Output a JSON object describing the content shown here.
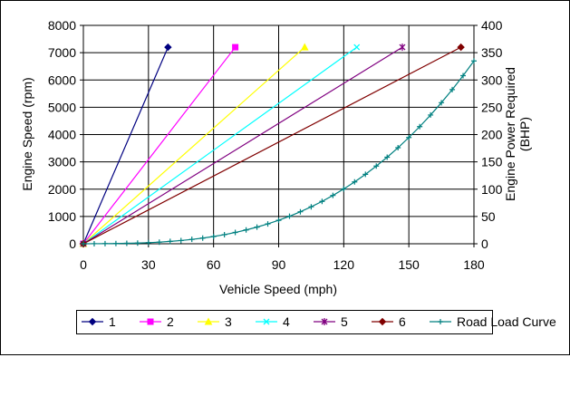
{
  "chart_data": {
    "type": "line",
    "xlabel": "Vehicle Speed (mph)",
    "ylabel": "Engine Speed (rpm)",
    "y2label": "Engine Power Required (BHP)",
    "xlim": [
      0,
      180
    ],
    "xticks": [
      0,
      30,
      60,
      90,
      120,
      150,
      180
    ],
    "ylim": [
      0,
      8000
    ],
    "yticks": [
      0,
      1000,
      2000,
      3000,
      4000,
      5000,
      6000,
      7000,
      8000
    ],
    "y2lim": [
      0,
      400
    ],
    "y2ticks": [
      0,
      50,
      100,
      150,
      200,
      250,
      300,
      350,
      400
    ],
    "grid": true,
    "legend": "bottom",
    "series": [
      {
        "name": "1",
        "color": "#000080",
        "marker": "diamond",
        "x": [
          0,
          39
        ],
        "values": [
          0,
          7200
        ]
      },
      {
        "name": "2",
        "color": "#ff00ff",
        "marker": "square",
        "x": [
          0,
          70
        ],
        "values": [
          0,
          7200
        ]
      },
      {
        "name": "3",
        "color": "#ffff00",
        "marker": "triangle",
        "x": [
          0,
          102
        ],
        "values": [
          0,
          7200
        ]
      },
      {
        "name": "4",
        "color": "#00ffff",
        "marker": "x",
        "x": [
          0,
          126
        ],
        "values": [
          0,
          7200
        ]
      },
      {
        "name": "5",
        "color": "#800080",
        "marker": "star",
        "x": [
          0,
          147
        ],
        "values": [
          0,
          7200
        ]
      },
      {
        "name": "6",
        "color": "#800000",
        "marker": "diamond",
        "x": [
          0,
          174
        ],
        "values": [
          0,
          7200
        ]
      },
      {
        "name": "Road Load Curve",
        "color": "#008080",
        "marker": "plus",
        "axis": "y2",
        "x": [
          0,
          5,
          10,
          15,
          20,
          25,
          30,
          35,
          40,
          45,
          50,
          55,
          60,
          65,
          70,
          75,
          80,
          85,
          90,
          95,
          100,
          105,
          110,
          115,
          120,
          125,
          130,
          135,
          140,
          145,
          150,
          155,
          160,
          165,
          170,
          175,
          180
        ],
        "values": [
          0,
          0.1,
          0.2,
          0.4,
          0.8,
          1.3,
          2.0,
          3.0,
          4.3,
          5.9,
          8.0,
          10.4,
          13.3,
          16.7,
          20.7,
          25.3,
          30.5,
          36.4,
          43.0,
          50.4,
          58.6,
          67.7,
          77.6,
          88.5,
          100.4,
          113.3,
          127.2,
          142.3,
          158.5,
          175.9,
          194.6,
          214.5,
          235.8,
          258.4,
          282.4,
          307.9,
          334.9
        ]
      }
    ]
  }
}
